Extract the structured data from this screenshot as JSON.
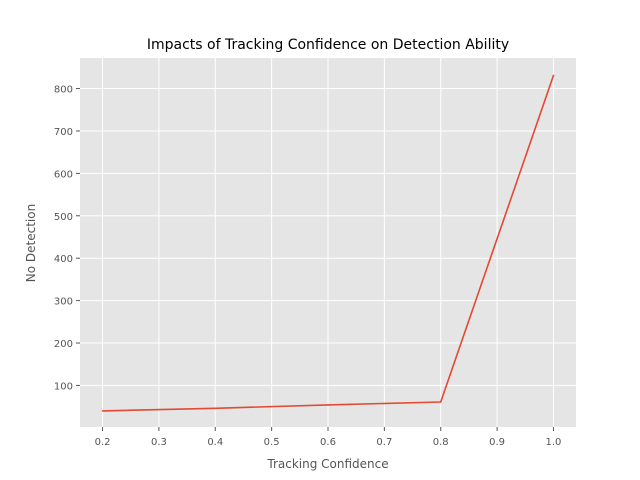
{
  "chart_data": {
    "type": "line",
    "title": "Impacts of Tracking Confidence on Detection Ability",
    "xlabel": "Tracking Confidence",
    "ylabel": "No Detection",
    "xlim": [
      0.16,
      1.04
    ],
    "ylim": [
      2,
      872
    ],
    "x_ticks": [
      0.2,
      0.3,
      0.4,
      0.5,
      0.6,
      0.7,
      0.8,
      0.9,
      1.0
    ],
    "x_tick_labels": [
      "0.2",
      "0.3",
      "0.4",
      "0.5",
      "0.6",
      "0.7",
      "0.8",
      "0.9",
      "1.0"
    ],
    "y_ticks": [
      100,
      200,
      300,
      400,
      500,
      600,
      700,
      800
    ],
    "y_tick_labels": [
      "100",
      "200",
      "300",
      "400",
      "500",
      "600",
      "700",
      "800"
    ],
    "grid": true,
    "series": [
      {
        "x": [
          0.2,
          0.4,
          0.6,
          0.8,
          1.0
        ],
        "y": [
          40,
          46,
          54,
          61,
          831
        ],
        "color": "#E24A33"
      }
    ],
    "colors": {
      "plot_background": "#E5E5E5",
      "grid": "#FFFFFF",
      "line": "#E24A33"
    }
  }
}
